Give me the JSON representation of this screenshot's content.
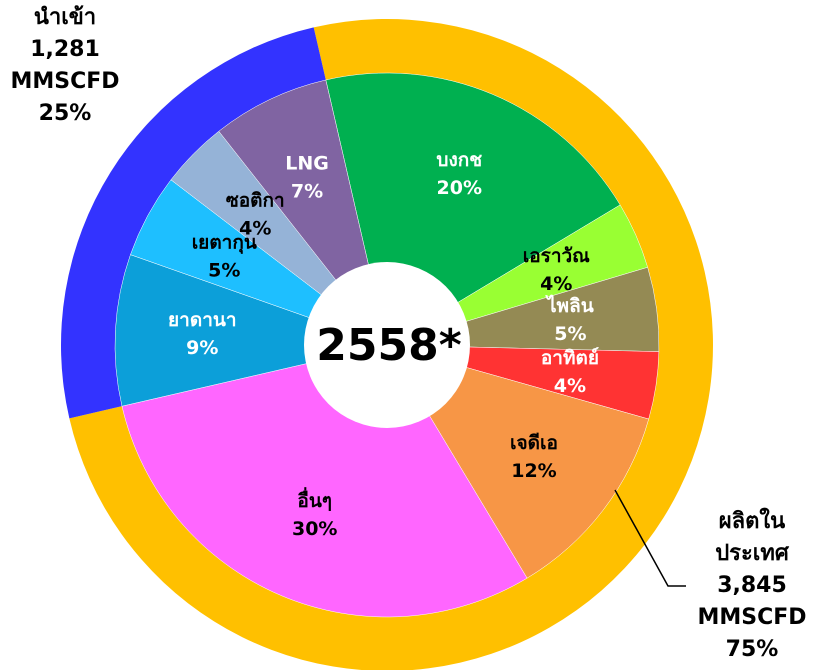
{
  "chart_data": {
    "type": "nested-donut",
    "center_label": "2558*",
    "outer": {
      "categories": [
        [
          "ผลิตใน",
          "ประเทศ"
        ],
        [
          "นำเข้า"
        ]
      ],
      "amounts": [
        3845,
        1281
      ],
      "amount_labels": [
        "3,845",
        "1,281"
      ],
      "unit": "MMSCFD",
      "values": [
        75,
        25
      ],
      "value_labels": [
        "75%",
        "25%"
      ],
      "colors": [
        "#FFC000",
        "#3333FF"
      ]
    },
    "inner": {
      "categories": [
        "บงกช",
        "เอราวัณ",
        "ไพลิน",
        "อาทิตย์",
        "เจดีเอ",
        "อื่นๆ",
        "ยาดานา",
        "เยตากุน",
        "ซอติกา",
        "LNG"
      ],
      "values": [
        20,
        4,
        5,
        4,
        12,
        30,
        9,
        5,
        4,
        7
      ],
      "value_labels": [
        "20%",
        "4%",
        "5%",
        "4%",
        "12%",
        "30%",
        "9%",
        "5%",
        "4%",
        "7%"
      ],
      "colors": [
        "#00B050",
        "#99FF33",
        "#948A54",
        "#FF3333",
        "#F79646",
        "#FF66FF",
        "#0C9FD9",
        "#1EBFFF",
        "#95B3D7",
        "#8064A2"
      ],
      "label_colors": [
        "#ffffff",
        "#000000",
        "#ffffff",
        "#ffffff",
        "#000000",
        "#000000",
        "#ffffff",
        "#000000",
        "#000000",
        "#ffffff"
      ]
    }
  }
}
